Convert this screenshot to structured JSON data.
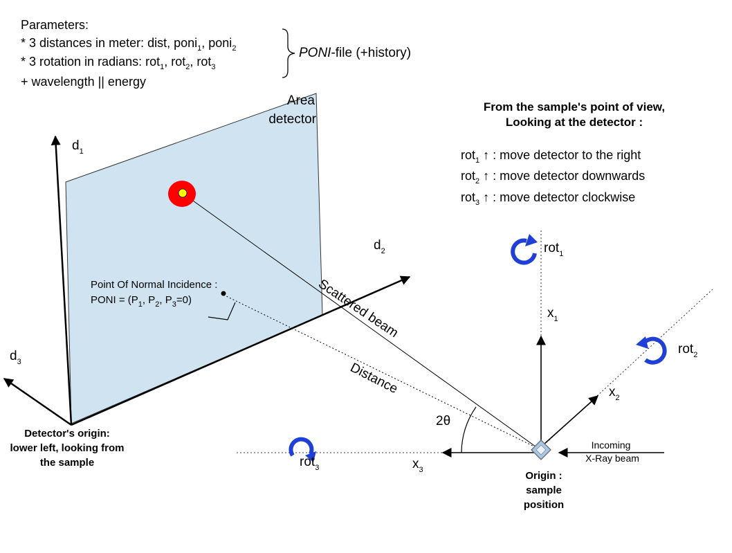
{
  "parameters": {
    "title": "Parameters:",
    "line1_prefix": "* 3 distances in meter: dist, poni",
    "line1_sub1": "1",
    "line1_mid": ", poni",
    "line1_sub2": "2",
    "line2_prefix": "* 3 rotation in radians: rot",
    "line2_sub1": "1",
    "line2_sep1": ", rot",
    "line2_sub2": "2",
    "line2_sep2": ", rot",
    "line2_sub3": "3",
    "line3": "+ wavelength || energy",
    "poni_file_italic": "PONI",
    "poni_file_rest": "-file (+history)"
  },
  "detector": {
    "label_line1": "Area",
    "label_line2": "detector",
    "origin_line1": "Detector's origin:",
    "origin_line2": "lower left, looking from",
    "origin_line3": "the sample",
    "d1": "d",
    "d1_sub": "1",
    "d2": "d",
    "d2_sub": "2",
    "d3": "d",
    "d3_sub": "3"
  },
  "poni": {
    "line1": "Point Of Normal Incidence :",
    "line2_a": "PONI = (P",
    "sub1": "1",
    "line2_b": ", P",
    "sub2": "2",
    "line2_c": ", P",
    "sub3": "3",
    "line2_d": "=0)"
  },
  "beams": {
    "scattered": "Scattered beam",
    "distance": "Distance",
    "angle": "2θ",
    "incoming_line1": "Incoming",
    "incoming_line2": "X-Ray beam"
  },
  "sample": {
    "line1": "Origin :",
    "line2": "sample",
    "line3": "position"
  },
  "axes": {
    "x1": "x",
    "x1_sub": "1",
    "x2": "x",
    "x2_sub": "2",
    "x3": "x",
    "x3_sub": "3",
    "rot1": "rot",
    "rot1_sub": "1",
    "rot2": "rot",
    "rot2_sub": "2",
    "rot3": "rot",
    "rot3_sub": "3"
  },
  "view_info": {
    "title_line1": "From the sample's point of view,",
    "title_line2": "Looking at the detector :",
    "items": [
      {
        "prefix": "rot",
        "sub": "1",
        "text": " ↑ : move detector to the right"
      },
      {
        "prefix": "rot",
        "sub": "2",
        "text": " ↑ : move detector downwards"
      },
      {
        "prefix": "rot",
        "sub": "3",
        "text": " ↑ : move detector clockwise"
      }
    ]
  },
  "colors": {
    "panel_fill": "#cfe3f1",
    "arrow_blue": "#1f3fd6",
    "spot_red": "#ff0000",
    "spot_yellow": "#ffff00",
    "crystal": "#a9c8e8"
  }
}
